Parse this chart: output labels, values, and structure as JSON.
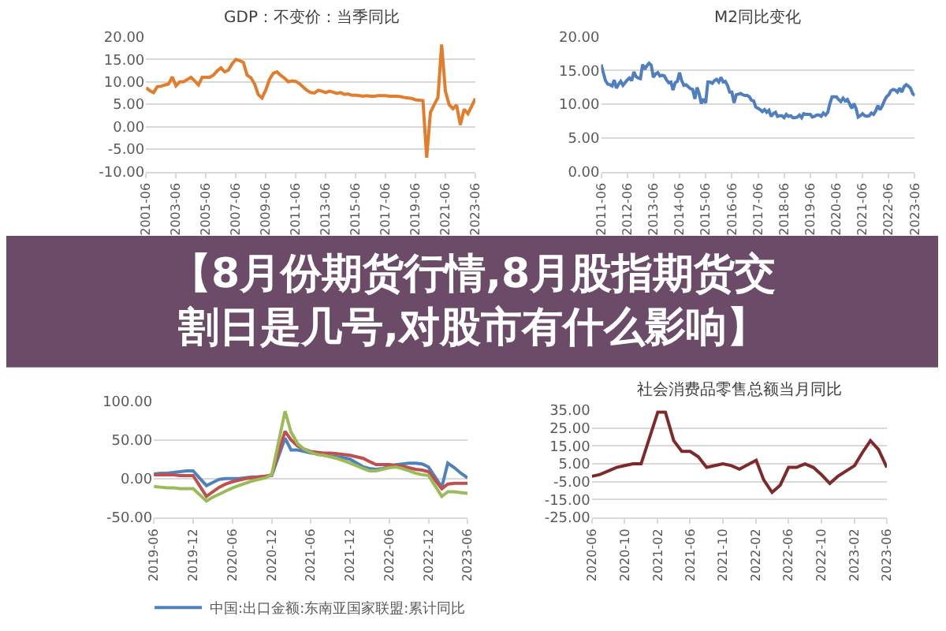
{
  "chart_data": [
    {
      "type": "line",
      "title": "GDP：不变价：当季同比",
      "color": "#e27d2e",
      "grid": "y",
      "x": [
        "2001-06",
        "2001-09",
        "2001-12",
        "2002-03",
        "2002-06",
        "2002-09",
        "2002-12",
        "2003-03",
        "2003-06",
        "2003-09",
        "2003-12",
        "2004-03",
        "2004-06",
        "2004-09",
        "2004-12",
        "2005-03",
        "2005-06",
        "2005-09",
        "2005-12",
        "2006-03",
        "2006-06",
        "2006-09",
        "2006-12",
        "2007-03",
        "2007-06",
        "2007-09",
        "2007-12",
        "2008-03",
        "2008-06",
        "2008-09",
        "2008-12",
        "2009-03",
        "2009-06",
        "2009-09",
        "2009-12",
        "2010-03",
        "2010-06",
        "2010-09",
        "2010-12",
        "2011-03",
        "2011-06",
        "2011-09",
        "2011-12",
        "2012-03",
        "2012-06",
        "2012-09",
        "2012-12",
        "2013-03",
        "2013-06",
        "2013-09",
        "2013-12",
        "2014-03",
        "2014-06",
        "2014-09",
        "2014-12",
        "2015-03",
        "2015-06",
        "2015-09",
        "2015-12",
        "2016-03",
        "2016-06",
        "2016-09",
        "2016-12",
        "2017-03",
        "2017-06",
        "2017-09",
        "2017-12",
        "2018-03",
        "2018-06",
        "2018-09",
        "2018-12",
        "2019-03",
        "2019-06",
        "2019-09",
        "2019-12",
        "2020-03",
        "2020-06",
        "2020-09",
        "2020-12",
        "2021-03",
        "2021-06",
        "2021-09",
        "2021-12",
        "2022-03",
        "2022-06",
        "2022-09",
        "2022-12",
        "2023-03",
        "2023-06"
      ],
      "values": [
        8.7,
        8.0,
        7.6,
        8.9,
        9.0,
        9.3,
        9.5,
        11.1,
        9.1,
        10.0,
        10.0,
        10.5,
        11.0,
        10.2,
        9.3,
        11.0,
        11.0,
        11.0,
        11.5,
        12.4,
        13.1,
        12.2,
        12.6,
        14.0,
        15.0,
        14.7,
        14.3,
        11.5,
        10.9,
        9.5,
        7.1,
        6.4,
        8.2,
        10.6,
        11.9,
        12.2,
        11.4,
        10.8,
        10.0,
        10.2,
        10.1,
        9.6,
        8.8,
        8.1,
        7.6,
        7.5,
        8.1,
        7.9,
        7.6,
        7.9,
        7.7,
        7.4,
        7.6,
        7.2,
        7.3,
        7.0,
        7.0,
        6.9,
        6.8,
        6.9,
        6.8,
        6.8,
        6.9,
        6.9,
        6.9,
        6.8,
        6.8,
        6.8,
        6.7,
        6.5,
        6.4,
        6.3,
        6.0,
        5.9,
        5.8,
        -6.9,
        3.2,
        4.9,
        6.5,
        18.3,
        7.9,
        4.9,
        4.0,
        4.8,
        0.4,
        3.9,
        2.9,
        4.5,
        6.3
      ],
      "xlim": [
        "2001-06",
        "2023-06"
      ],
      "xticks": [
        "2001-06",
        "2003-06",
        "2005-06",
        "2007-06",
        "2009-06",
        "2011-06",
        "2013-06",
        "2015-06",
        "2017-06",
        "2019-06",
        "2021-06",
        "2023-06"
      ],
      "ylim": [
        -10,
        20
      ],
      "yticks": [
        {
          "value": -10,
          "label": "-10.00"
        },
        {
          "value": -5,
          "label": "-5.00"
        },
        {
          "value": 0,
          "label": "0.00"
        },
        {
          "value": 5,
          "label": "5.00"
        },
        {
          "value": 10,
          "label": "10.00"
        },
        {
          "value": 15,
          "label": "15.00"
        },
        {
          "value": 20,
          "label": "20.00"
        }
      ]
    },
    {
      "type": "line",
      "title": "M2同比变化",
      "color": "#4f7fc0",
      "grid": "y",
      "x": [
        "2011-06",
        "2011-07",
        "2011-08",
        "2011-09",
        "2011-10",
        "2011-11",
        "2011-12",
        "2012-01",
        "2012-02",
        "2012-03",
        "2012-04",
        "2012-05",
        "2012-06",
        "2012-07",
        "2012-08",
        "2012-09",
        "2012-10",
        "2012-11",
        "2012-12",
        "2013-01",
        "2013-02",
        "2013-03",
        "2013-04",
        "2013-05",
        "2013-06",
        "2013-07",
        "2013-08",
        "2013-09",
        "2013-10",
        "2013-11",
        "2013-12",
        "2014-01",
        "2014-02",
        "2014-03",
        "2014-04",
        "2014-05",
        "2014-06",
        "2014-07",
        "2014-08",
        "2014-09",
        "2014-10",
        "2014-11",
        "2014-12",
        "2015-01",
        "2015-02",
        "2015-03",
        "2015-04",
        "2015-05",
        "2015-06",
        "2015-07",
        "2015-08",
        "2015-09",
        "2015-10",
        "2015-11",
        "2015-12",
        "2016-01",
        "2016-02",
        "2016-03",
        "2016-04",
        "2016-05",
        "2016-06",
        "2016-07",
        "2016-08",
        "2016-09",
        "2016-10",
        "2016-11",
        "2016-12",
        "2017-01",
        "2017-02",
        "2017-03",
        "2017-04",
        "2017-05",
        "2017-06",
        "2017-07",
        "2017-08",
        "2017-09",
        "2017-10",
        "2017-11",
        "2017-12",
        "2018-01",
        "2018-02",
        "2018-03",
        "2018-04",
        "2018-05",
        "2018-06",
        "2018-07",
        "2018-08",
        "2018-09",
        "2018-10",
        "2018-11",
        "2018-12",
        "2019-01",
        "2019-02",
        "2019-03",
        "2019-04",
        "2019-05",
        "2019-06",
        "2019-07",
        "2019-08",
        "2019-09",
        "2019-10",
        "2019-11",
        "2019-12",
        "2020-01",
        "2020-02",
        "2020-03",
        "2020-04",
        "2020-05",
        "2020-06",
        "2020-07",
        "2020-08",
        "2020-09",
        "2020-10",
        "2020-11",
        "2020-12",
        "2021-01",
        "2021-02",
        "2021-03",
        "2021-04",
        "2021-05",
        "2021-06",
        "2021-07",
        "2021-08",
        "2021-09",
        "2021-10",
        "2021-11",
        "2021-12",
        "2022-01",
        "2022-02",
        "2022-03",
        "2022-04",
        "2022-05",
        "2022-06",
        "2022-07",
        "2022-08",
        "2022-09",
        "2022-10",
        "2022-11",
        "2022-12",
        "2023-01",
        "2023-02",
        "2023-03",
        "2023-04",
        "2023-05",
        "2023-06"
      ],
      "values": [
        15.9,
        14.7,
        13.5,
        13.0,
        12.9,
        12.7,
        13.6,
        12.4,
        13.0,
        13.4,
        12.8,
        13.2,
        13.6,
        13.9,
        13.5,
        14.8,
        14.1,
        13.9,
        13.8,
        15.9,
        15.2,
        15.7,
        16.1,
        15.8,
        14.0,
        14.5,
        14.7,
        14.2,
        14.3,
        14.2,
        13.6,
        13.2,
        13.3,
        12.1,
        13.2,
        13.4,
        14.7,
        13.5,
        12.8,
        12.9,
        12.6,
        12.3,
        12.2,
        10.8,
        12.5,
        11.6,
        10.1,
        10.8,
        10.2,
        13.3,
        13.3,
        13.1,
        13.5,
        13.7,
        13.3,
        14.0,
        13.3,
        13.4,
        12.8,
        11.8,
        11.8,
        10.2,
        11.4,
        11.5,
        11.6,
        11.4,
        11.3,
        11.3,
        11.1,
        10.6,
        10.5,
        9.6,
        9.4,
        9.2,
        8.9,
        9.2,
        8.8,
        9.1,
        8.2,
        8.6,
        8.8,
        8.2,
        8.3,
        8.3,
        8.0,
        8.5,
        8.2,
        8.3,
        8.0,
        8.0,
        8.1,
        8.4,
        8.0,
        8.6,
        8.5,
        8.5,
        8.5,
        8.1,
        8.2,
        8.4,
        8.4,
        8.2,
        8.7,
        8.4,
        8.8,
        10.1,
        11.1,
        11.1,
        11.1,
        10.7,
        10.4,
        10.9,
        10.5,
        10.7,
        10.1,
        9.4,
        10.1,
        9.4,
        8.1,
        8.3,
        8.6,
        8.3,
        8.2,
        8.3,
        8.7,
        8.5,
        9.0,
        9.8,
        9.2,
        9.7,
        10.5,
        11.1,
        11.4,
        12.0,
        12.2,
        12.1,
        11.8,
        12.4,
        11.8,
        12.6,
        12.9,
        12.7,
        12.4,
        11.6,
        11.3
      ],
      "xlim": [
        "2011-06",
        "2023-06"
      ],
      "xticks": [
        "2011-06",
        "2012-06",
        "2013-06",
        "2014-06",
        "2015-06",
        "2016-06",
        "2017-06",
        "2018-06",
        "2019-06",
        "2020-06",
        "2021-06",
        "2022-06",
        "2023-06"
      ],
      "ylim": [
        0,
        20
      ],
      "yticks": [
        {
          "value": 0,
          "label": "0.00"
        },
        {
          "value": 5,
          "label": "5.00"
        },
        {
          "value": 10,
          "label": "10.00"
        },
        {
          "value": 15,
          "label": "15.00"
        },
        {
          "value": 20,
          "label": "20.00"
        }
      ]
    },
    {
      "type": "other",
      "title": "【8月份期货行情,8月股指期货交割日是几号,对股市有什么影响】",
      "color": "#6b4b68"
    },
    {
      "type": "line",
      "grid": "y",
      "legend": "bottom",
      "x": [
        "2019-06",
        "2019-07",
        "2019-08",
        "2019-09",
        "2019-10",
        "2019-11",
        "2019-12",
        "2020-02",
        "2020-03",
        "2020-04",
        "2020-05",
        "2020-06",
        "2020-07",
        "2020-08",
        "2020-09",
        "2020-10",
        "2020-11",
        "2020-12",
        "2021-02",
        "2021-03",
        "2021-04",
        "2021-05",
        "2021-06",
        "2021-07",
        "2021-08",
        "2021-09",
        "2021-10",
        "2021-11",
        "2021-12",
        "2022-02",
        "2022-03",
        "2022-04",
        "2022-05",
        "2022-06",
        "2022-07",
        "2022-08",
        "2022-09",
        "2022-10",
        "2022-11",
        "2022-12",
        "2023-02",
        "2023-03",
        "2023-04",
        "2023-05",
        "2023-06"
      ],
      "series": [
        {
          "name": "中国:出口金额:东南亚国家联盟:累计同比",
          "color": "#4f81bd",
          "values": [
            6,
            7,
            7,
            8,
            9,
            10,
            10,
            -9,
            -5,
            -1,
            0,
            0,
            0,
            1,
            2,
            2,
            3,
            4,
            52,
            37,
            37,
            35,
            33,
            32,
            30,
            29,
            28,
            27,
            25,
            15,
            13,
            12,
            13,
            15,
            18,
            19,
            20,
            20,
            19,
            15,
            -11,
            20,
            14,
            7,
            1
          ]
        },
        {
          "color": "#c0504d",
          "values": [
            5,
            5,
            5,
            5,
            4,
            4,
            4,
            -23,
            -17,
            -11,
            -7,
            -4,
            -2,
            0,
            1,
            2,
            3,
            5,
            61,
            50,
            42,
            38,
            35,
            34,
            33,
            33,
            32,
            31,
            30,
            26,
            22,
            18,
            18,
            18,
            17,
            16,
            14,
            12,
            11,
            9,
            -13,
            -7,
            -6,
            -6,
            -6
          ]
        },
        {
          "color": "#9bbb59",
          "values": [
            -10,
            -11,
            -12,
            -12,
            -13,
            -13,
            -13,
            -29,
            -24,
            -20,
            -16,
            -12,
            -9,
            -6,
            -3,
            -1,
            1,
            5,
            87,
            60,
            45,
            38,
            34,
            31,
            30,
            28,
            26,
            23,
            20,
            13,
            10,
            10,
            12,
            14,
            15,
            13,
            10,
            7,
            5,
            4,
            -23,
            -17,
            -17,
            -18,
            -19
          ]
        }
      ],
      "xlim": [
        "2019-06",
        "2023-06"
      ],
      "xticks": [
        "2019-06",
        "2019-12",
        "2020-06",
        "2020-12",
        "2021-06",
        "2021-12",
        "2022-06",
        "2022-12",
        "2023-06"
      ],
      "ylim": [
        -50,
        100
      ],
      "yticks": [
        {
          "value": -50,
          "label": "-50.00"
        },
        {
          "value": 0,
          "label": "0.00"
        },
        {
          "value": 50,
          "label": "50.00"
        },
        {
          "value": 100,
          "label": "100.00"
        }
      ]
    },
    {
      "type": "line",
      "title": "社会消费品零售总额当月同比",
      "color": "#7f2a2a",
      "grid": "y",
      "x": [
        "2020-06",
        "2020-07",
        "2020-08",
        "2020-09",
        "2020-10",
        "2020-11",
        "2020-12",
        "2021-02",
        "2021-03",
        "2021-04",
        "2021-05",
        "2021-06",
        "2021-07",
        "2021-08",
        "2021-09",
        "2021-10",
        "2021-11",
        "2021-12",
        "2022-02",
        "2022-03",
        "2022-04",
        "2022-05",
        "2022-06",
        "2022-07",
        "2022-08",
        "2022-09",
        "2022-10",
        "2022-11",
        "2022-12",
        "2023-02",
        "2023-03",
        "2023-04",
        "2023-05",
        "2023-06"
      ],
      "values": [
        -2,
        -1,
        1,
        3,
        4,
        5,
        5,
        34,
        34,
        18,
        12,
        12,
        9,
        3,
        4,
        5,
        4,
        2,
        7,
        -4,
        -11,
        -7,
        3,
        3,
        5,
        3,
        -1,
        -6,
        -2,
        4,
        11,
        18,
        13,
        3
      ],
      "xlim": [
        "2020-06",
        "2023-06"
      ],
      "xticks": [
        "2020-06",
        "2020-10",
        "2021-02",
        "2021-06",
        "2021-10",
        "2022-02",
        "2022-06",
        "2022-10",
        "2023-02",
        "2023-06"
      ],
      "ylim": [
        -25,
        35
      ],
      "yticks": [
        {
          "value": -25,
          "label": "-25.00"
        },
        {
          "value": -15,
          "label": "-15.00"
        },
        {
          "value": -5,
          "label": "-5.00"
        },
        {
          "value": 5,
          "label": "5.00"
        },
        {
          "value": 15,
          "label": "15.00"
        },
        {
          "value": 25,
          "label": "25.00"
        },
        {
          "value": 35,
          "label": "35.00"
        }
      ]
    }
  ]
}
